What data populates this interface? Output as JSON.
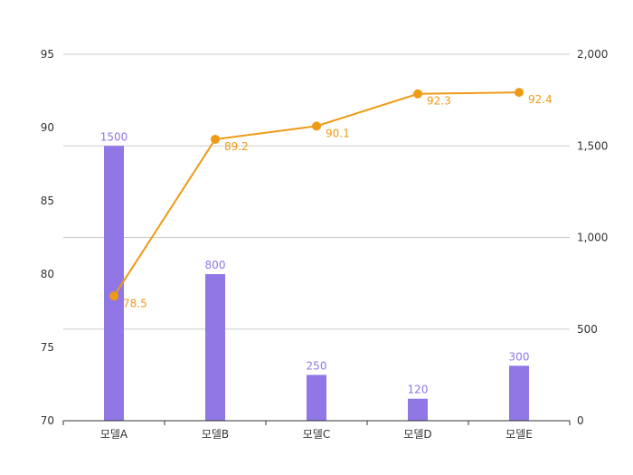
{
  "chart_data": {
    "type": "bar",
    "categories": [
      "모델A",
      "모델B",
      "모델C",
      "모델D",
      "모델E"
    ],
    "series": [
      {
        "type": "bar",
        "axis": "right",
        "values": [
          1500,
          800,
          250,
          120,
          300
        ],
        "color": "#9176e6"
      },
      {
        "type": "line",
        "axis": "left",
        "values": [
          78.5,
          89.2,
          90.1,
          92.3,
          92.4
        ],
        "color": "#ee9a17"
      }
    ],
    "left_axis": {
      "ylim": [
        70,
        95
      ],
      "ticks": [
        70,
        75,
        80,
        85,
        90,
        95
      ],
      "tick_labels": [
        "70",
        "75",
        "80",
        "85",
        "90",
        "95"
      ]
    },
    "right_axis": {
      "ylim": [
        0,
        2000
      ],
      "ticks": [
        0,
        500,
        1000,
        1500,
        2000
      ],
      "tick_labels": [
        "0",
        "500",
        "1,000",
        "1,500",
        "2,000"
      ]
    },
    "grid": true,
    "legend": "none"
  }
}
